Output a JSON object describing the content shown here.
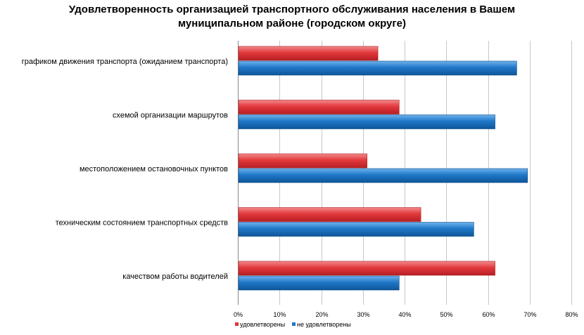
{
  "chart_data": {
    "type": "bar",
    "orientation": "horizontal",
    "title_lines": [
      "Удовлетворенность организацией транспортного обслуживания  населения в Вашем",
      "муниципальном районе (городском округе)"
    ],
    "categories": [
      "графиком движения транспорта (ожиданием транспорта)",
      "схемой организации маршрутов",
      "местоположением остановочных пунктов",
      "техническим состоянием транспортных средств",
      "качеством работы водителей"
    ],
    "series": [
      {
        "name": "удовлетворены",
        "color": "#e0363a",
        "values": [
          33.6,
          38.7,
          31.0,
          43.9,
          61.7
        ]
      },
      {
        "name": "не удовлетворены",
        "color": "#1f78c8",
        "values": [
          66.9,
          61.7,
          69.5,
          56.6,
          38.7
        ]
      }
    ],
    "xlim": [
      0,
      80
    ],
    "xticks": [
      "0%",
      "10%",
      "20%",
      "30%",
      "40%",
      "50%",
      "60%",
      "70%",
      "80%"
    ],
    "grid": true,
    "legend_position": "bottom"
  }
}
